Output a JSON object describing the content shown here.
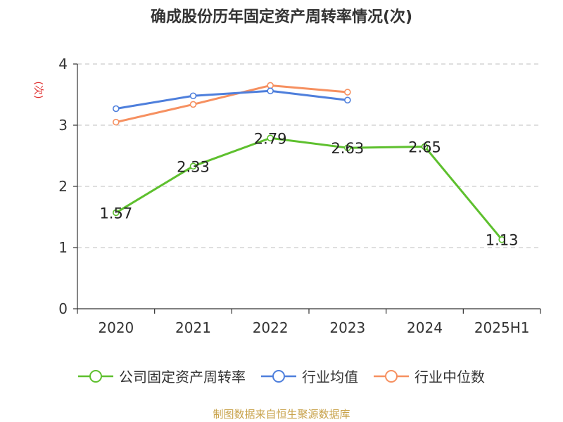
{
  "title": "确成股份历年固定资产周转率情况(次)",
  "source": "制图数据来自恒生聚源数据库",
  "chart_data": {
    "type": "line",
    "title": "确成股份历年固定资产周转率情况(次)",
    "ylabel": "(次)",
    "ylim": [
      0,
      4
    ],
    "yticks": [
      0,
      1,
      2,
      3,
      4
    ],
    "grid": true,
    "legend_position": "bottom",
    "categories": [
      "2020",
      "2021",
      "2022",
      "2023",
      "2024",
      "2025H1"
    ],
    "series": [
      {
        "name": "公司固定资产周转率",
        "color": "#5ec02e",
        "values": [
          1.57,
          2.33,
          2.79,
          2.63,
          2.65,
          1.13
        ],
        "labels": [
          "1.57",
          "2.33",
          "2.79",
          "2.63",
          "2.65",
          "1.13"
        ]
      },
      {
        "name": "行业均值",
        "color": "#4e7fdc",
        "values": [
          3.27,
          3.48,
          3.56,
          3.41,
          null,
          null
        ]
      },
      {
        "name": "行业中位数",
        "color": "#f69060",
        "values": [
          3.05,
          3.34,
          3.65,
          3.54,
          null,
          null
        ]
      }
    ]
  }
}
